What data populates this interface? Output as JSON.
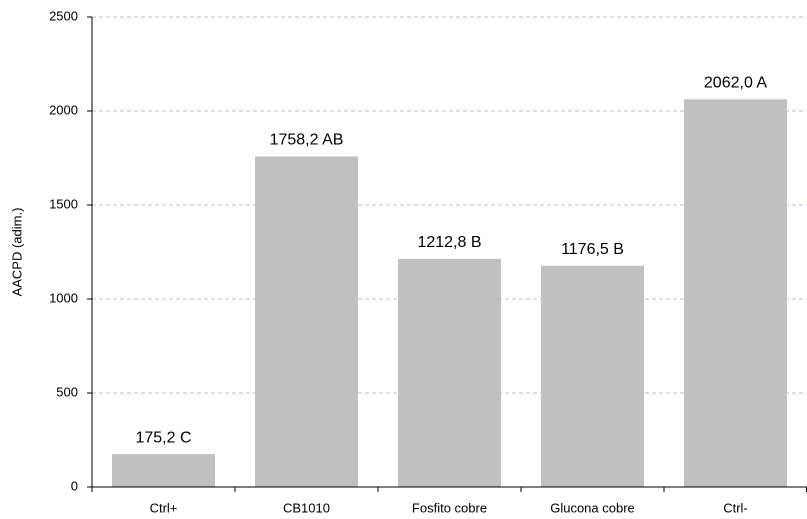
{
  "chart_data": {
    "type": "bar",
    "y_label": "AACPD (adim.)",
    "categories": [
      "Ctrl+",
      "CB1010",
      "Fosfito cobre",
      "Glucona cobre",
      "Ctrl-"
    ],
    "values": [
      175.2,
      1758.2,
      1212.8,
      1176.5,
      2062.0
    ],
    "value_labels": [
      "175,2 C",
      "1758,2 AB",
      "1212,8 B",
      "1176,5 B",
      "2062,0 A"
    ],
    "color": "#c0c0c0",
    "ylim": [
      0,
      2500
    ],
    "yticks": [
      0,
      500,
      1000,
      1500,
      2000,
      2500
    ],
    "grid": true
  }
}
